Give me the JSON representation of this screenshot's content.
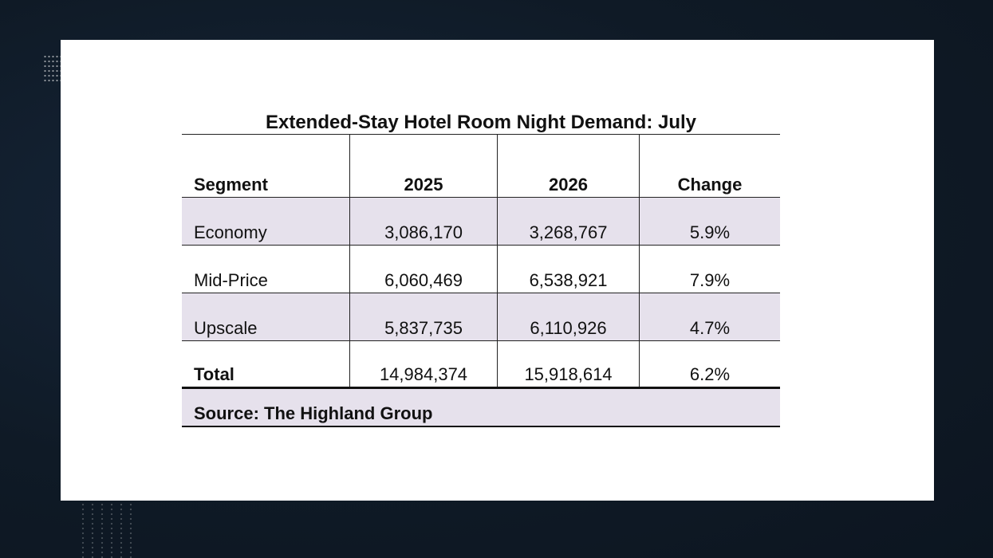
{
  "table": {
    "title": "Extended-Stay Hotel Room Night Demand: July",
    "columns": [
      "Segment",
      "2025",
      "2026",
      "Change"
    ],
    "rows": [
      {
        "segment": "Economy",
        "y2025": "3,086,170",
        "y2026": "3,268,767",
        "change": "5.9%"
      },
      {
        "segment": "Mid-Price",
        "y2025": "6,060,469",
        "y2026": "6,538,921",
        "change": "7.9%"
      },
      {
        "segment": "Upscale",
        "y2025": "5,837,735",
        "y2026": "6,110,926",
        "change": "4.7%"
      }
    ],
    "total": {
      "segment": "Total",
      "y2025": "14,984,374",
      "y2026": "15,918,614",
      "change": "6.2%"
    },
    "source": "Source: The Highland Group"
  },
  "colors": {
    "background": "#0f1a26",
    "panel": "#ffffff",
    "row_shade": "#e6e1ec"
  }
}
